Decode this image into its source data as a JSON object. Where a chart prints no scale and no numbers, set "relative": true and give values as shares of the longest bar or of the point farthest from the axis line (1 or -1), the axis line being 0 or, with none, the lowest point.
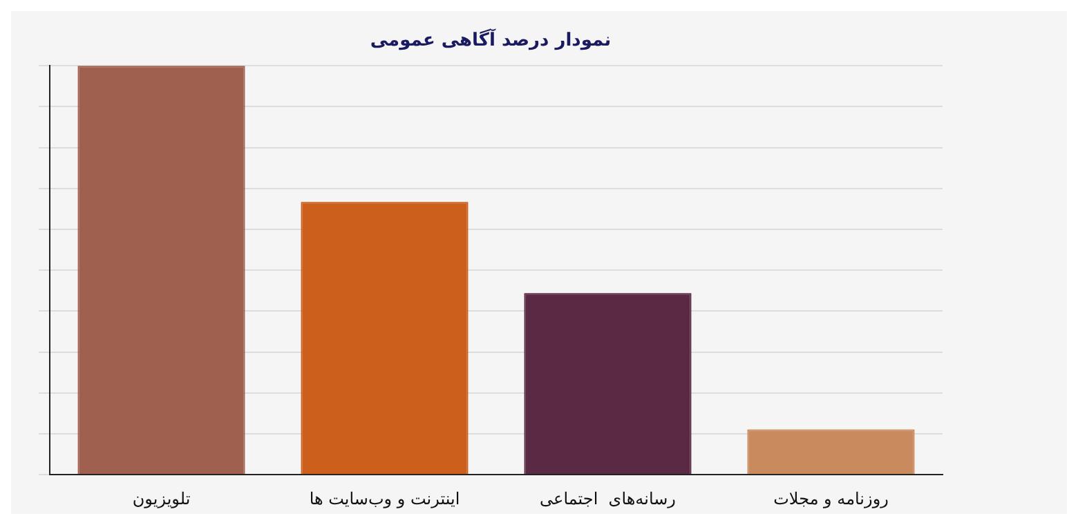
{
  "chart_data": {
    "type": "bar",
    "title": "نمودار درصد آگاهی عمومی",
    "relative": true,
    "grid": "y",
    "categories": [
      "تلویزیون",
      "اینترنت و وب‌سایت ها",
      "رسانه‌های  اجتماعی",
      "روزنامه و مجلات"
    ],
    "values": [
      1,
      0.667,
      0.444,
      0.111
    ],
    "colors": [
      "#a0604f",
      "#cc5f1c",
      "#5a2a45",
      "#c98a5e"
    ]
  }
}
